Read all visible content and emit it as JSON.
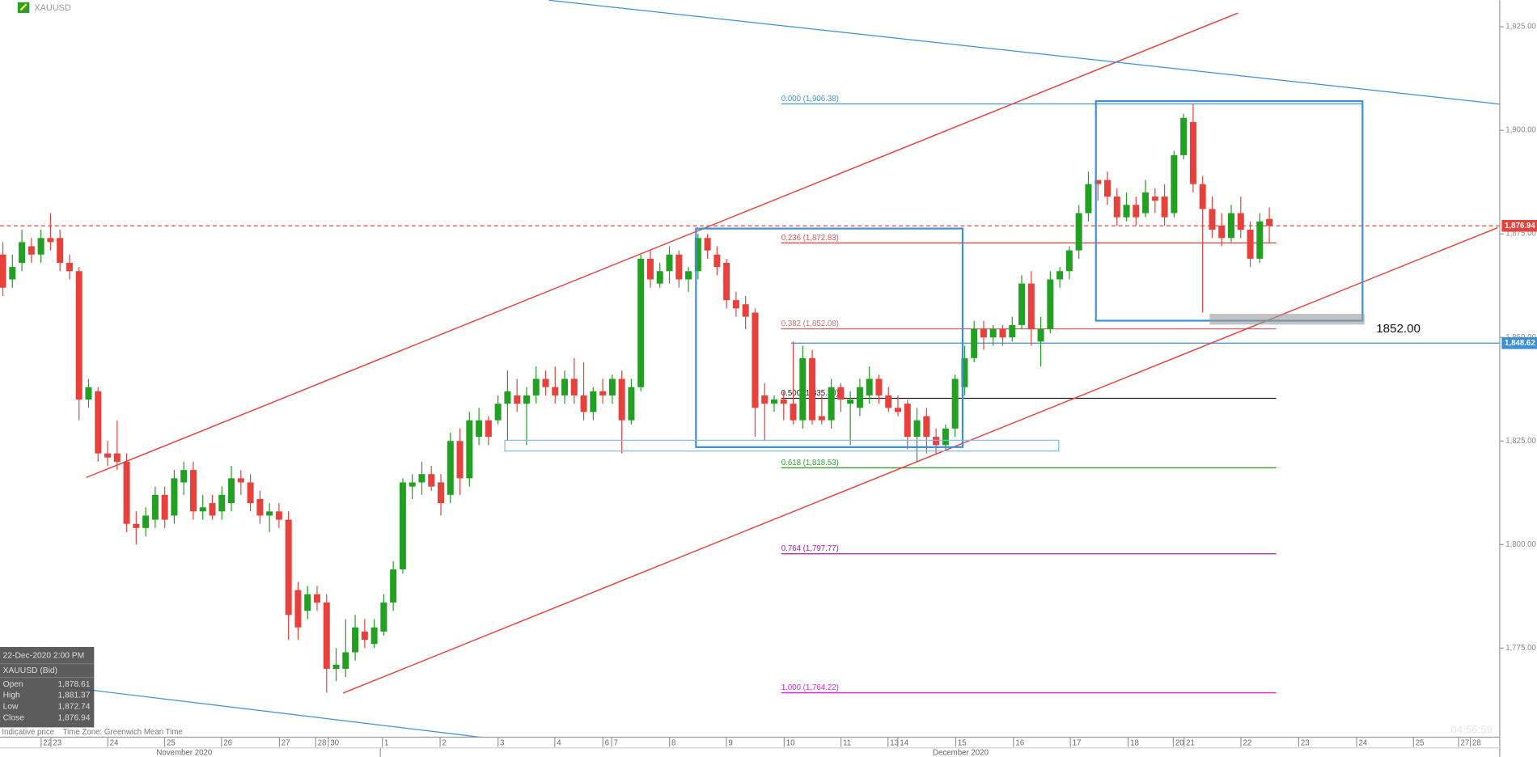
{
  "header": {
    "symbol": "XAUUSD"
  },
  "chart_data": {
    "type": "candlestick",
    "series": [
      {
        "name": "XAUUSD (Bid)",
        "up_color": "#22a022",
        "down_color": "#e8413c",
        "open": [
          1870,
          1864,
          1868,
          1872,
          1870,
          1874,
          1874,
          1868,
          1866,
          1835,
          1837,
          1822,
          1822,
          1820,
          1805,
          1804,
          1806,
          1812,
          1807,
          1815,
          1818,
          1808,
          1810,
          1808,
          1810,
          1816,
          1815,
          1811,
          1807,
          1808,
          1806,
          1789,
          1784,
          1788,
          1786,
          1770,
          1770,
          1774,
          1779,
          1776,
          1779,
          1786,
          1794,
          1814,
          1815,
          1817,
          1815,
          1812,
          1825,
          1816,
          1826,
          1830,
          1830,
          1834,
          1836,
          1834,
          1836,
          1840,
          1838,
          1836,
          1840,
          1836,
          1832,
          1837,
          1836,
          1840,
          1830,
          1838,
          1869,
          1863,
          1866,
          1870,
          1864,
          1866,
          1874,
          1870,
          1868,
          1859,
          1858,
          1856,
          1836,
          1834,
          1835,
          1834,
          1830,
          1845,
          1831,
          1830,
          1838,
          1834,
          1833,
          1836,
          1840,
          1836,
          1833,
          1834,
          1826,
          1831,
          1826,
          1824,
          1828,
          1838,
          1845,
          1852,
          1850,
          1852,
          1850,
          1853,
          1863,
          1849,
          1852,
          1864,
          1866,
          1871,
          1880,
          1888,
          1888,
          1884,
          1879,
          1882,
          1880,
          1884,
          1884,
          1880,
          1894,
          1902,
          1887,
          1881,
          1877,
          1874,
          1880,
          1876,
          1869,
          1878.61
        ],
        "high": [
          1873,
          1870,
          1876,
          1874,
          1876,
          1880,
          1876,
          1870,
          1867,
          1840,
          1838,
          1825,
          1830,
          1822,
          1808,
          1809,
          1814,
          1814,
          1818,
          1820,
          1820,
          1812,
          1812,
          1814,
          1819,
          1818,
          1817,
          1813,
          1810,
          1810,
          1808,
          1791,
          1790,
          1790,
          1788,
          1775,
          1782,
          1783,
          1782,
          1782,
          1788,
          1796,
          1816,
          1817,
          1820,
          1819,
          1817,
          1827,
          1828,
          1832,
          1833,
          1831,
          1836,
          1842,
          1840,
          1838,
          1843,
          1842,
          1843,
          1842,
          1845,
          1844,
          1838,
          1840,
          1841,
          1842,
          1840,
          1870,
          1871,
          1868,
          1872,
          1871,
          1867,
          1875,
          1875,
          1872,
          1869,
          1861,
          1860,
          1857,
          1839,
          1836,
          1837,
          1849,
          1848,
          1847,
          1836,
          1840,
          1839,
          1837,
          1840,
          1843,
          1841,
          1838,
          1836,
          1835,
          1833,
          1833,
          1828,
          1829,
          1841,
          1848,
          1854,
          1854,
          1853,
          1853,
          1855,
          1865,
          1866,
          1855,
          1866,
          1867,
          1872,
          1882,
          1890,
          1888,
          1890,
          1886,
          1885,
          1884,
          1888,
          1886,
          1887,
          1895,
          1904,
          1906.38,
          1889,
          1884,
          1880,
          1882,
          1884,
          1878,
          1880,
          1881.37
        ],
        "low": [
          1860,
          1862,
          1866,
          1868,
          1868,
          1871,
          1866,
          1864,
          1830,
          1833,
          1820,
          1819,
          1818,
          1803,
          1800,
          1802,
          1804,
          1804,
          1805,
          1812,
          1806,
          1806,
          1806,
          1806,
          1808,
          1812,
          1808,
          1805,
          1803,
          1804,
          1777,
          1777,
          1782,
          1784,
          1764.22,
          1767,
          1768,
          1772,
          1775,
          1775,
          1778,
          1784,
          1793,
          1811,
          1812,
          1813,
          1807,
          1810,
          1812,
          1814,
          1824,
          1824,
          1829,
          1825,
          1832,
          1824,
          1834,
          1836,
          1834,
          1834,
          1834,
          1830,
          1830,
          1834,
          1834,
          1822,
          1829,
          1837,
          1862,
          1862,
          1863,
          1862,
          1861,
          1864,
          1869,
          1865,
          1857,
          1855,
          1852,
          1826,
          1825,
          1832,
          1830,
          1829,
          1828,
          1829,
          1829,
          1828,
          1832,
          1824,
          1831,
          1834,
          1834,
          1832,
          1831,
          1823,
          1820,
          1822,
          1822,
          1823,
          1826,
          1836,
          1844,
          1847,
          1848,
          1848,
          1849,
          1852,
          1848,
          1843,
          1851,
          1862,
          1864,
          1869,
          1878,
          1883,
          1882,
          1877,
          1878,
          1877,
          1879,
          1880,
          1877,
          1879,
          1893,
          1885,
          1856,
          1874,
          1872,
          1873,
          1874,
          1867,
          1868,
          1872.74
        ],
        "close": [
          1862,
          1867,
          1873,
          1870,
          1874,
          1873,
          1868,
          1866,
          1835,
          1838,
          1822,
          1821,
          1820,
          1805,
          1804,
          1807,
          1812,
          1806,
          1816,
          1818,
          1808,
          1809,
          1807,
          1812,
          1816,
          1815,
          1810,
          1807,
          1808,
          1806,
          1783,
          1780,
          1788,
          1786,
          1770,
          1771,
          1774,
          1780,
          1777,
          1780,
          1786,
          1794,
          1815,
          1815,
          1817,
          1814,
          1810,
          1825,
          1816,
          1830,
          1830,
          1826,
          1834,
          1837,
          1834,
          1836,
          1840,
          1838,
          1836,
          1840,
          1836,
          1832,
          1837,
          1836,
          1840,
          1830,
          1838,
          1869,
          1864,
          1866,
          1870,
          1864,
          1866,
          1874,
          1871,
          1867,
          1859,
          1857,
          1855,
          1833,
          1834,
          1835,
          1834,
          1830,
          1845,
          1830,
          1830,
          1838,
          1835,
          1835,
          1838,
          1840,
          1836,
          1833,
          1832,
          1826,
          1830,
          1826,
          1824,
          1828,
          1840,
          1845,
          1852,
          1850,
          1852,
          1850,
          1853,
          1863,
          1852,
          1852,
          1864,
          1866,
          1871,
          1880,
          1887,
          1887,
          1884,
          1879,
          1882,
          1879,
          1885,
          1883,
          1879,
          1894,
          1903,
          1887,
          1881,
          1876,
          1874,
          1880,
          1876,
          1869,
          1878,
          1876.94
        ]
      }
    ],
    "xlim": [
      -0.3,
      157.2
    ],
    "xticks": [
      {
        "value": 4.02,
        "label": "22"
      },
      {
        "value": 5.05,
        "label": "23"
      },
      {
        "value": 11.02,
        "label": "24"
      },
      {
        "value": 16.99,
        "label": "25"
      },
      {
        "value": 22.96,
        "label": "26"
      },
      {
        "value": 29.04,
        "label": "27"
      },
      {
        "value": 32.85,
        "label": "28"
      },
      {
        "value": 34.18,
        "label": "30"
      },
      {
        "value": 39.85,
        "label": "1"
      },
      {
        "value": 45.92,
        "label": "2"
      },
      {
        "value": 52.0,
        "label": "3"
      },
      {
        "value": 57.96,
        "label": "4"
      },
      {
        "value": 63.01,
        "label": "6"
      },
      {
        "value": 63.93,
        "label": "7"
      },
      {
        "value": 70.01,
        "label": "8"
      },
      {
        "value": 75.98,
        "label": "9"
      },
      {
        "value": 82.05,
        "label": "10"
      },
      {
        "value": 88.02,
        "label": "11"
      },
      {
        "value": 92.96,
        "label": "13"
      },
      {
        "value": 93.99,
        "label": "14"
      },
      {
        "value": 100.07,
        "label": "15"
      },
      {
        "value": 106.14,
        "label": "16"
      },
      {
        "value": 112.11,
        "label": "17"
      },
      {
        "value": 118.18,
        "label": "18"
      },
      {
        "value": 122.92,
        "label": "20"
      },
      {
        "value": 124.05,
        "label": "21"
      },
      {
        "value": 130.02,
        "label": "22"
      },
      {
        "value": 136.09,
        "label": "23"
      },
      {
        "value": 142.17,
        "label": "24"
      },
      {
        "value": 148.14,
        "label": "25"
      },
      {
        "value": 152.88,
        "label": "27"
      },
      {
        "value": 154.11,
        "label": "28"
      }
    ],
    "month_labels": [
      "November 2020",
      "December 2020"
    ],
    "ylim": [
      1753.5,
      1931.4
    ],
    "yticks": [
      {
        "value": 1775,
        "label": "1,775.00"
      },
      {
        "value": 1800,
        "label": "1,800.00"
      },
      {
        "value": 1825,
        "label": "1,825.00"
      },
      {
        "value": 1850,
        "label": "1,850.00"
      },
      {
        "value": 1875,
        "label": "1,875.00"
      },
      {
        "value": 1900,
        "label": "1,900.00"
      },
      {
        "value": 1925,
        "label": "1,925.00"
      }
    ],
    "fibonacci": [
      {
        "label": "0.000 (1,906.38)",
        "price": 1906.38,
        "color": "#3a8fd6"
      },
      {
        "label": "0.236 (1,872.83)",
        "price": 1872.83,
        "color": "#e0504a"
      },
      {
        "label": "0.382 (1,852.08)",
        "price": 1852.08,
        "color": "#c87070"
      },
      {
        "label": "0.500 (1,835.30)",
        "price": 1835.3,
        "color": "#222222"
      },
      {
        "label": "0.618 (1,818.53)",
        "price": 1818.53,
        "color": "#2ea02e"
      },
      {
        "label": "0.764 (1,797.77)",
        "price": 1797.77,
        "color": "#a020a0"
      },
      {
        "label": "1.000 (1,764.22)",
        "price": 1764.22,
        "color": "#e020e0"
      }
    ],
    "price_lines": [
      {
        "value": 1876.94,
        "label": "1,876.94",
        "color": "#e8413c",
        "style": "dashed"
      },
      {
        "value": 1848.62,
        "label": "1,848.62",
        "color": "#3a8fd6",
        "style": "solid"
      }
    ],
    "annotation": {
      "value": 1852,
      "label": "1852.00"
    }
  },
  "info_box": {
    "datetime": "22-Dec-2020 2:00 PM",
    "rows": [
      {
        "label": "Open",
        "value": "1,878.61"
      },
      {
        "label": "High",
        "value": "1,881.37"
      },
      {
        "label": "Low",
        "value": "1,872.74"
      },
      {
        "label": "Close",
        "value": "1,876.94"
      }
    ]
  },
  "footer": {
    "note": "Indicative price",
    "timezone": "Time Zone: Greenwich Mean Time"
  },
  "clock": "04:56:59"
}
